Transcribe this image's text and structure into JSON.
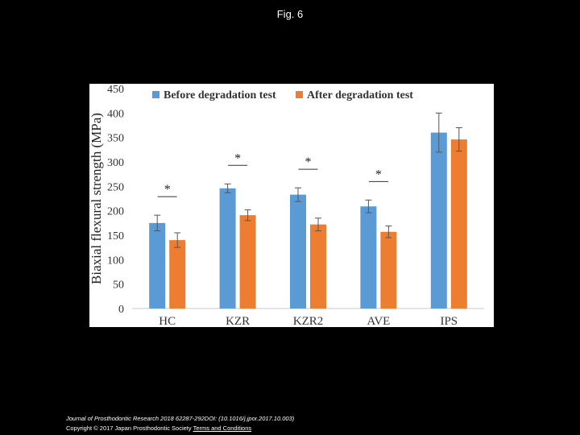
{
  "page": {
    "title": "Fig. 6"
  },
  "chart_data": {
    "type": "bar",
    "title": "",
    "xlabel": "",
    "ylabel": "Biaxial flexural strength (MPa)",
    "ylim": [
      0,
      450
    ],
    "yticks": [
      0,
      50,
      100,
      150,
      200,
      250,
      300,
      350,
      400,
      450
    ],
    "grid": false,
    "legend_position": "top",
    "categories": [
      "HC",
      "KZR",
      "KZR2",
      "AVE",
      "IPS"
    ],
    "series": [
      {
        "name": "Before degradation test",
        "color": "#5b9bd5",
        "values": [
          175,
          246,
          233,
          209,
          360
        ],
        "errors": [
          16,
          9,
          14,
          13,
          40
        ]
      },
      {
        "name": "After degradation test",
        "color": "#ed7d31",
        "values": [
          140,
          191,
          172,
          157,
          346
        ],
        "errors": [
          15,
          11,
          13,
          12,
          24
        ]
      }
    ],
    "annotations": [
      {
        "category": "HC",
        "text": "*"
      },
      {
        "category": "KZR",
        "text": "*"
      },
      {
        "category": "KZR2",
        "text": "*"
      },
      {
        "category": "AVE",
        "text": "*"
      }
    ]
  },
  "footer": {
    "journal": "Journal of Prosthodontic Research 2018 62287-292DOI: (10.1016/j.jpor.2017.10.003)",
    "copyright": "Copyright © 2017 Japan Prosthodontic Society",
    "link": "Terms and Conditions"
  }
}
